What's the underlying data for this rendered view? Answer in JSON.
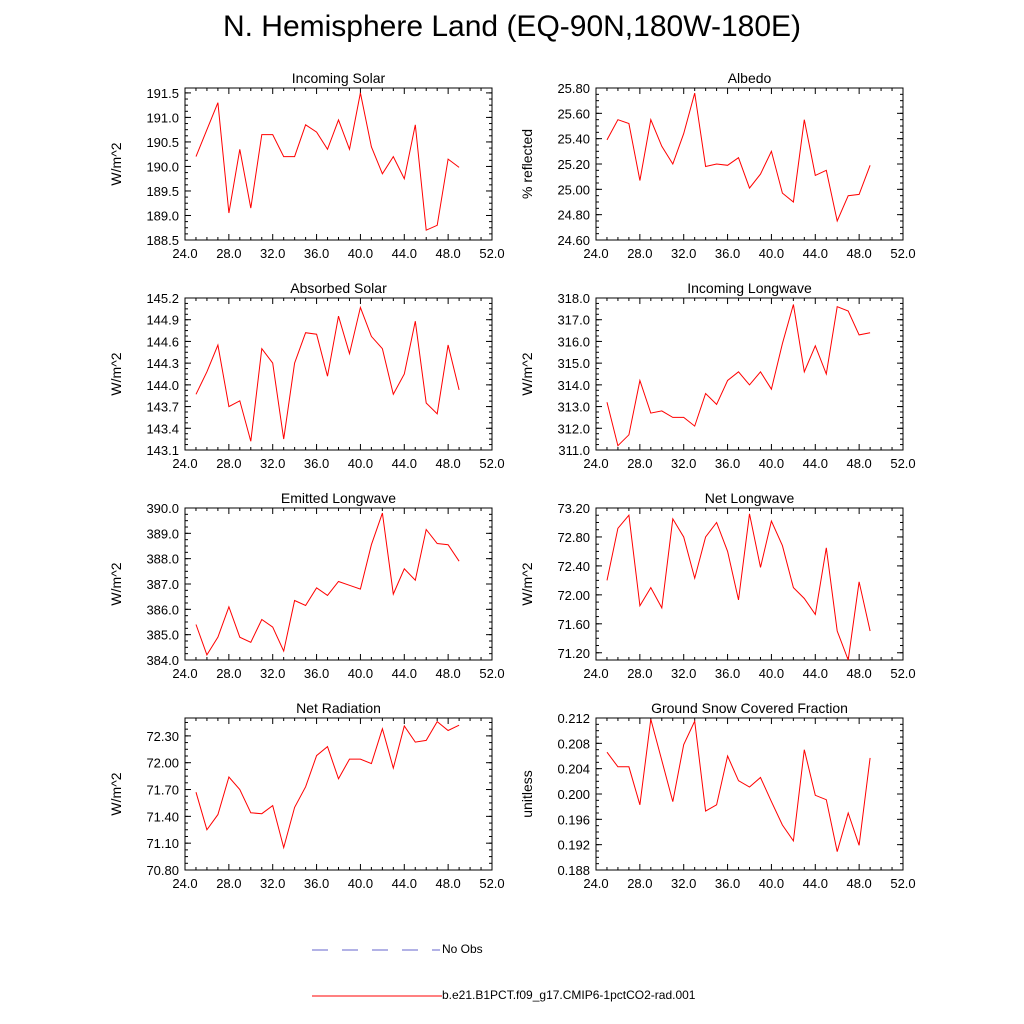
{
  "page": {
    "title": "N. Hemisphere Land (EQ-90N,180W-180E)"
  },
  "legend": [
    {
      "label": "No Obs",
      "style": "dashed",
      "color": "#6666cc"
    },
    {
      "label": "b.e21.B1PCT.f09_g17.CMIP6-1pctCO2-rad.001",
      "style": "solid",
      "color": "#ff0000"
    }
  ],
  "chart_data": [
    {
      "type": "line",
      "title": "Incoming Solar",
      "ylabel": "W/m^2",
      "xlim": [
        24,
        52
      ],
      "ylim": [
        188.5,
        191.6
      ],
      "xticks": [
        24,
        28,
        32,
        36,
        40,
        44,
        48,
        52
      ],
      "xtick_labels": [
        "24.0",
        "28.0",
        "32.0",
        "36.0",
        "40.0",
        "44.0",
        "48.0",
        "52.0"
      ],
      "yticks": [
        188.5,
        189.0,
        189.5,
        190.0,
        190.5,
        191.0,
        191.5
      ],
      "ytick_labels": [
        "188.5",
        "189.0",
        "189.5",
        "190.0",
        "190.5",
        "191.0",
        "191.5"
      ],
      "x": [
        25,
        26,
        27,
        28,
        29,
        30,
        31,
        32,
        33,
        34,
        35,
        36,
        37,
        38,
        39,
        40,
        41,
        42,
        43,
        44,
        45,
        46,
        47,
        48,
        49
      ],
      "series": [
        {
          "name": "b.e21.B1PCT.f09_g17.CMIP6-1pctCO2-rad.001",
          "color": "#ff0000",
          "values": [
            190.2,
            190.75,
            191.3,
            189.05,
            190.35,
            189.15,
            190.65,
            190.65,
            190.2,
            190.2,
            190.85,
            190.7,
            190.35,
            190.95,
            190.35,
            191.5,
            190.4,
            189.85,
            190.2,
            189.75,
            190.85,
            188.7,
            188.8,
            190.15,
            189.98
          ]
        }
      ]
    },
    {
      "type": "line",
      "title": "Albedo",
      "ylabel": "% reflected",
      "xlim": [
        24,
        52
      ],
      "ylim": [
        24.6,
        25.8
      ],
      "xticks": [
        24,
        28,
        32,
        36,
        40,
        44,
        48,
        52
      ],
      "xtick_labels": [
        "24.0",
        "28.0",
        "32.0",
        "36.0",
        "40.0",
        "44.0",
        "48.0",
        "52.0"
      ],
      "yticks": [
        24.6,
        24.8,
        25.0,
        25.2,
        25.4,
        25.6,
        25.8
      ],
      "ytick_labels": [
        "24.60",
        "24.80",
        "25.00",
        "25.20",
        "25.40",
        "25.60",
        "25.80"
      ],
      "x": [
        25,
        26,
        27,
        28,
        29,
        30,
        31,
        32,
        33,
        34,
        35,
        36,
        37,
        38,
        39,
        40,
        41,
        42,
        43,
        44,
        45,
        46,
        47,
        48,
        49
      ],
      "series": [
        {
          "name": "b.e21.B1PCT.f09_g17.CMIP6-1pctCO2-rad.001",
          "color": "#ff0000",
          "values": [
            25.39,
            25.55,
            25.52,
            25.07,
            25.55,
            25.34,
            25.2,
            25.44,
            25.76,
            25.18,
            25.2,
            25.19,
            25.25,
            25.01,
            25.12,
            25.3,
            24.97,
            24.9,
            25.55,
            25.11,
            25.15,
            24.75,
            24.95,
            24.96,
            25.19
          ]
        }
      ]
    },
    {
      "type": "line",
      "title": "Absorbed Solar",
      "ylabel": "W/m^2",
      "xlim": [
        24,
        52
      ],
      "ylim": [
        143.1,
        145.2
      ],
      "xticks": [
        24,
        28,
        32,
        36,
        40,
        44,
        48,
        52
      ],
      "xtick_labels": [
        "24.0",
        "28.0",
        "32.0",
        "36.0",
        "40.0",
        "44.0",
        "48.0",
        "52.0"
      ],
      "yticks": [
        143.1,
        143.4,
        143.7,
        144.0,
        144.3,
        144.6,
        144.9,
        145.2
      ],
      "ytick_labels": [
        "143.1",
        "143.4",
        "143.7",
        "144.0",
        "144.3",
        "144.6",
        "144.9",
        "145.2"
      ],
      "x": [
        25,
        26,
        27,
        28,
        29,
        30,
        31,
        32,
        33,
        34,
        35,
        36,
        37,
        38,
        39,
        40,
        41,
        42,
        43,
        44,
        45,
        46,
        47,
        48,
        49
      ],
      "series": [
        {
          "name": "b.e21.B1PCT.f09_g17.CMIP6-1pctCO2-rad.001",
          "color": "#ff0000",
          "values": [
            143.87,
            144.18,
            144.55,
            143.7,
            143.78,
            143.22,
            144.5,
            144.3,
            143.25,
            144.3,
            144.72,
            144.7,
            144.12,
            144.95,
            144.43,
            145.07,
            144.67,
            144.5,
            143.87,
            144.15,
            144.88,
            143.75,
            143.6,
            144.55,
            143.93
          ]
        }
      ]
    },
    {
      "type": "line",
      "title": "Incoming Longwave",
      "ylabel": "W/m^2",
      "xlim": [
        24,
        52
      ],
      "ylim": [
        311,
        318
      ],
      "xticks": [
        24,
        28,
        32,
        36,
        40,
        44,
        48,
        52
      ],
      "xtick_labels": [
        "24.0",
        "28.0",
        "32.0",
        "36.0",
        "40.0",
        "44.0",
        "48.0",
        "52.0"
      ],
      "yticks": [
        311,
        312,
        313,
        314,
        315,
        316,
        317,
        318
      ],
      "ytick_labels": [
        "311.0",
        "312.0",
        "313.0",
        "314.0",
        "315.0",
        "316.0",
        "317.0",
        "318.0"
      ],
      "x": [
        25,
        26,
        27,
        28,
        29,
        30,
        31,
        32,
        33,
        34,
        35,
        36,
        37,
        38,
        39,
        40,
        41,
        42,
        43,
        44,
        45,
        46,
        47,
        48,
        49
      ],
      "series": [
        {
          "name": "b.e21.B1PCT.f09_g17.CMIP6-1pctCO2-rad.001",
          "color": "#ff0000",
          "values": [
            313.2,
            311.2,
            311.7,
            314.2,
            312.7,
            312.8,
            312.5,
            312.5,
            312.1,
            313.6,
            313.1,
            314.2,
            314.6,
            314.0,
            314.6,
            313.8,
            315.9,
            317.7,
            314.6,
            315.8,
            314.5,
            317.6,
            317.4,
            316.3,
            316.4
          ]
        }
      ]
    },
    {
      "type": "line",
      "title": "Emitted Longwave",
      "ylabel": "W/m^2",
      "xlim": [
        24,
        52
      ],
      "ylim": [
        384,
        390
      ],
      "xticks": [
        24,
        28,
        32,
        36,
        40,
        44,
        48,
        52
      ],
      "xtick_labels": [
        "24.0",
        "28.0",
        "32.0",
        "36.0",
        "40.0",
        "44.0",
        "48.0",
        "52.0"
      ],
      "yticks": [
        384,
        385,
        386,
        387,
        388,
        389,
        390
      ],
      "ytick_labels": [
        "384.0",
        "385.0",
        "386.0",
        "387.0",
        "388.0",
        "389.0",
        "390.0"
      ],
      "x": [
        25,
        26,
        27,
        28,
        29,
        30,
        31,
        32,
        33,
        34,
        35,
        36,
        37,
        38,
        39,
        40,
        41,
        42,
        43,
        44,
        45,
        46,
        47,
        48,
        49
      ],
      "series": [
        {
          "name": "b.e21.B1PCT.f09_g17.CMIP6-1pctCO2-rad.001",
          "color": "#ff0000",
          "values": [
            385.4,
            384.2,
            384.9,
            386.1,
            384.9,
            384.7,
            385.6,
            385.3,
            384.35,
            386.35,
            386.15,
            386.85,
            386.55,
            387.1,
            386.95,
            386.8,
            388.55,
            389.8,
            386.6,
            387.6,
            387.15,
            389.15,
            388.6,
            388.55,
            387.9
          ]
        }
      ]
    },
    {
      "type": "line",
      "title": "Net Longwave",
      "ylabel": "W/m^2",
      "xlim": [
        24,
        52
      ],
      "ylim": [
        71.1,
        73.2
      ],
      "xticks": [
        24,
        28,
        32,
        36,
        40,
        44,
        48,
        52
      ],
      "xtick_labels": [
        "24.0",
        "28.0",
        "32.0",
        "36.0",
        "40.0",
        "44.0",
        "48.0",
        "52.0"
      ],
      "yticks": [
        71.2,
        71.6,
        72.0,
        72.4,
        72.8,
        73.2
      ],
      "ytick_labels": [
        "71.20",
        "71.60",
        "72.00",
        "72.40",
        "72.80",
        "73.20"
      ],
      "x": [
        25,
        26,
        27,
        28,
        29,
        30,
        31,
        32,
        33,
        34,
        35,
        36,
        37,
        38,
        39,
        40,
        41,
        42,
        43,
        44,
        45,
        46,
        47,
        48,
        49
      ],
      "series": [
        {
          "name": "b.e21.B1PCT.f09_g17.CMIP6-1pctCO2-rad.001",
          "color": "#ff0000",
          "values": [
            72.2,
            72.92,
            73.1,
            71.85,
            72.1,
            71.82,
            73.05,
            72.8,
            72.23,
            72.8,
            73.0,
            72.6,
            71.93,
            73.12,
            72.38,
            73.02,
            72.68,
            72.1,
            71.95,
            71.73,
            72.65,
            71.5,
            71.1,
            72.18,
            71.5
          ]
        }
      ]
    },
    {
      "type": "line",
      "title": "Net Radiation",
      "ylabel": "W/m^2",
      "xlim": [
        24,
        52
      ],
      "ylim": [
        70.8,
        72.5
      ],
      "xticks": [
        24,
        28,
        32,
        36,
        40,
        44,
        48,
        52
      ],
      "xtick_labels": [
        "24.0",
        "28.0",
        "32.0",
        "36.0",
        "40.0",
        "44.0",
        "48.0",
        "52.0"
      ],
      "yticks": [
        70.8,
        71.1,
        71.4,
        71.7,
        72.0,
        72.3
      ],
      "ytick_labels": [
        "70.80",
        "71.10",
        "71.40",
        "71.70",
        "72.00",
        "72.30"
      ],
      "x": [
        25,
        26,
        27,
        28,
        29,
        30,
        31,
        32,
        33,
        34,
        35,
        36,
        37,
        38,
        39,
        40,
        41,
        42,
        43,
        44,
        45,
        46,
        47,
        48,
        49
      ],
      "series": [
        {
          "name": "b.e21.B1PCT.f09_g17.CMIP6-1pctCO2-rad.001",
          "color": "#ff0000",
          "values": [
            71.67,
            71.25,
            71.42,
            71.84,
            71.7,
            71.44,
            71.43,
            71.52,
            71.05,
            71.5,
            71.73,
            72.08,
            72.18,
            71.82,
            72.04,
            72.04,
            71.99,
            72.38,
            71.94,
            72.41,
            72.23,
            72.25,
            72.46,
            72.36,
            72.42
          ]
        }
      ]
    },
    {
      "type": "line",
      "title": "Ground Snow Covered Fraction",
      "ylabel": "unitless",
      "xlim": [
        24,
        52
      ],
      "ylim": [
        0.188,
        0.212
      ],
      "xticks": [
        24,
        28,
        32,
        36,
        40,
        44,
        48,
        52
      ],
      "xtick_labels": [
        "24.0",
        "28.0",
        "32.0",
        "36.0",
        "40.0",
        "44.0",
        "48.0",
        "52.0"
      ],
      "yticks": [
        0.188,
        0.192,
        0.196,
        0.2,
        0.204,
        0.208,
        0.212
      ],
      "ytick_labels": [
        "0.188",
        "0.192",
        "0.196",
        "0.200",
        "0.204",
        "0.208",
        "0.212"
      ],
      "x": [
        25,
        26,
        27,
        28,
        29,
        30,
        31,
        32,
        33,
        34,
        35,
        36,
        37,
        38,
        39,
        40,
        41,
        42,
        43,
        44,
        45,
        46,
        47,
        48,
        49
      ],
      "series": [
        {
          "name": "b.e21.B1PCT.f09_g17.CMIP6-1pctCO2-rad.001",
          "color": "#ff0000",
          "values": [
            0.2066,
            0.2043,
            0.2043,
            0.1983,
            0.2118,
            0.2053,
            0.1988,
            0.2078,
            0.2115,
            0.1973,
            0.1983,
            0.206,
            0.2021,
            0.2011,
            0.2026,
            0.1988,
            0.1951,
            0.1926,
            0.207,
            0.1998,
            0.1991,
            0.1909,
            0.197,
            0.1919,
            0.2057
          ]
        }
      ]
    }
  ]
}
